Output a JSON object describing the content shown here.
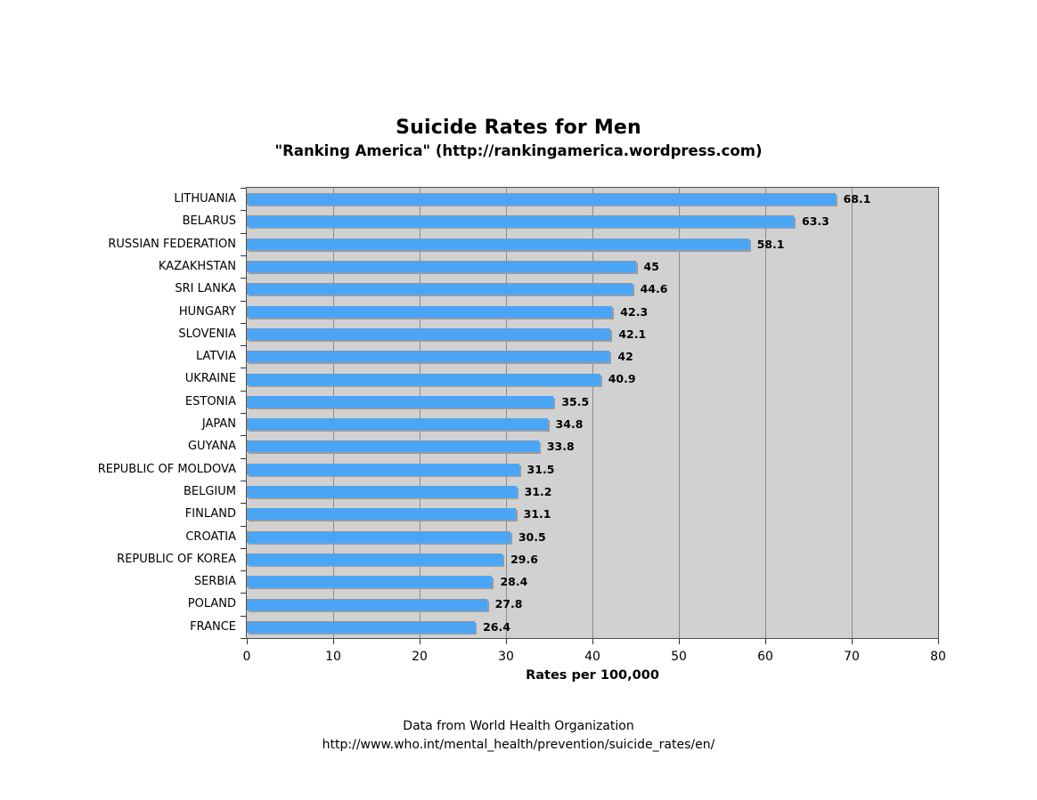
{
  "chart": {
    "title": "Suicide Rates for Men",
    "subtitle": "\"Ranking America\" (http://rankingamerica.wordpress.com)",
    "xlabel": "Rates per 100,000",
    "source_line1": "Data from World Health Organization",
    "source_line2": "http://www.who.int/mental_health/prevention/suicide_rates/en/"
  },
  "chart_data": {
    "type": "bar",
    "orientation": "horizontal",
    "title": "Suicide Rates for Men",
    "subtitle": "\"Ranking America\" (http://rankingamerica.wordpress.com)",
    "categories": [
      "LITHUANIA",
      "BELARUS",
      "RUSSIAN FEDERATION",
      "KAZAKHSTAN",
      "SRI LANKA",
      "HUNGARY",
      "SLOVENIA",
      "LATVIA",
      "UKRAINE",
      "ESTONIA",
      "JAPAN",
      "GUYANA",
      "REPUBLIC OF MOLDOVA",
      "BELGIUM",
      "FINLAND",
      "CROATIA",
      "REPUBLIC OF KOREA",
      "SERBIA",
      "POLAND",
      "FRANCE"
    ],
    "values": [
      68.1,
      63.3,
      58.1,
      45,
      44.6,
      42.3,
      42.1,
      42,
      40.9,
      35.5,
      34.8,
      33.8,
      31.5,
      31.2,
      31.1,
      30.5,
      29.6,
      28.4,
      27.8,
      26.4
    ],
    "xlabel": "Rates per 100,000",
    "ylabel": "",
    "xlim": [
      0,
      80
    ],
    "xticks": [
      0,
      10,
      20,
      30,
      40,
      50,
      60,
      70,
      80
    ],
    "grid": true,
    "legend": false,
    "data_labels": true,
    "bar_color": "#4BA5F5",
    "plot_bg_color": "#D1D1D1",
    "gridline_color": "#8C8C8C",
    "annotations": [
      "Data from World Health Organization",
      "http://www.who.int/mental_health/prevention/suicide_rates/en/"
    ]
  }
}
